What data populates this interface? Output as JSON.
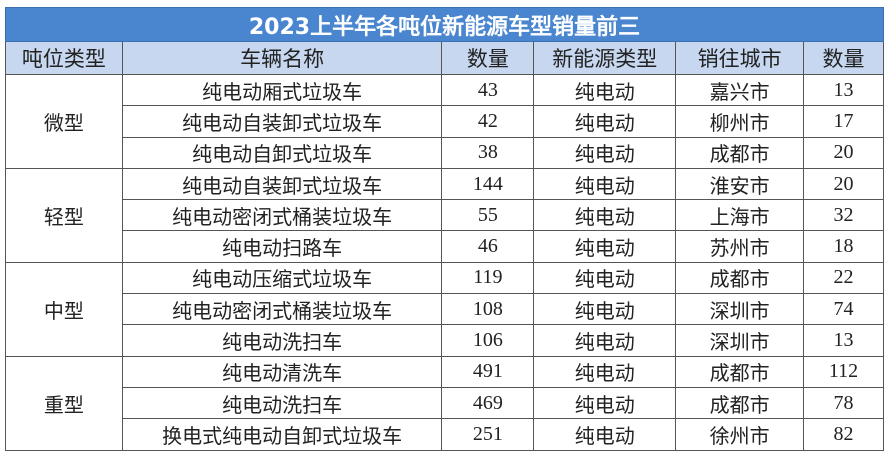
{
  "title": "2023上半年各吨位新能源车型销量前三",
  "headers": [
    "吨位类型",
    "车辆名称",
    "数量",
    "新能源类型",
    "销往城市",
    "数量"
  ],
  "groups": [
    {
      "type": "微型",
      "rows": [
        {
          "name": "纯电动厢式垃圾车",
          "qty": "43",
          "energy": "纯电动",
          "city": "嘉兴市",
          "city_qty": "13"
        },
        {
          "name": "纯电动自装卸式垃圾车",
          "qty": "42",
          "energy": "纯电动",
          "city": "柳州市",
          "city_qty": "17"
        },
        {
          "name": "纯电动自卸式垃圾车",
          "qty": "38",
          "energy": "纯电动",
          "city": "成都市",
          "city_qty": "20"
        }
      ]
    },
    {
      "type": "轻型",
      "rows": [
        {
          "name": "纯电动自装卸式垃圾车",
          "qty": "144",
          "energy": "纯电动",
          "city": "淮安市",
          "city_qty": "20"
        },
        {
          "name": "纯电动密闭式桶装垃圾车",
          "qty": "55",
          "energy": "纯电动",
          "city": "上海市",
          "city_qty": "32"
        },
        {
          "name": "纯电动扫路车",
          "qty": "46",
          "energy": "纯电动",
          "city": "苏州市",
          "city_qty": "18"
        }
      ]
    },
    {
      "type": "中型",
      "rows": [
        {
          "name": "纯电动压缩式垃圾车",
          "qty": "119",
          "energy": "纯电动",
          "city": "成都市",
          "city_qty": "22"
        },
        {
          "name": "纯电动密闭式桶装垃圾车",
          "qty": "108",
          "energy": "纯电动",
          "city": "深圳市",
          "city_qty": "74"
        },
        {
          "name": "纯电动洗扫车",
          "qty": "106",
          "energy": "纯电动",
          "city": "深圳市",
          "city_qty": "13"
        }
      ]
    },
    {
      "type": "重型",
      "rows": [
        {
          "name": "纯电动清洗车",
          "qty": "491",
          "energy": "纯电动",
          "city": "成都市",
          "city_qty": "112"
        },
        {
          "name": "纯电动洗扫车",
          "qty": "469",
          "energy": "纯电动",
          "city": "成都市",
          "city_qty": "78"
        },
        {
          "name": "换电式纯电动自卸式垃圾车",
          "qty": "251",
          "energy": "纯电动",
          "city": "徐州市",
          "city_qty": "82"
        }
      ]
    }
  ],
  "colors": {
    "title_bg": "#4a86d0",
    "header_bg": "#c6d7ef"
  }
}
